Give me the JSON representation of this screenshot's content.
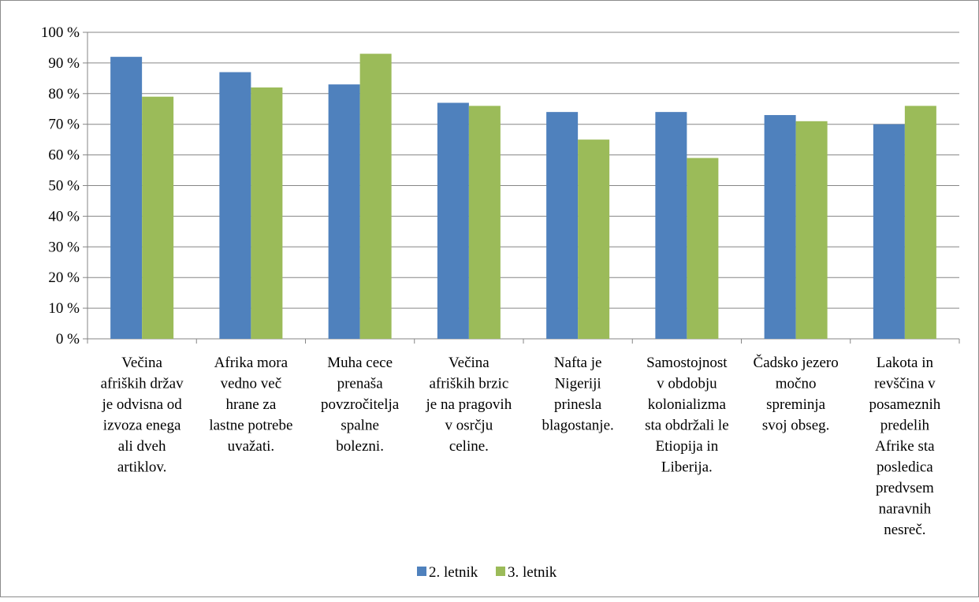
{
  "chart_data": {
    "type": "bar",
    "categories": [
      "Večina afriških držav je odvisna od izvoza enega ali dveh artiklov.",
      "Afrika mora vedno več hrane za lastne potrebe uvažati.",
      "Muha cece prenaša povzročitelja spalne bolezni.",
      "Večina afriških brzic je na pragovih v osrčju celine.",
      "Nafta je Nigeriji prinesla blagostanje.",
      "Samostojnost v obdobju kolonializma sta obdržali le Etiopija in Liberija.",
      "Čadsko jezero močno spreminja svoj obseg.",
      "Lakota in revščina v posameznih predelih Afrike sta posledica predvsem naravnih nesreč."
    ],
    "category_lines": [
      [
        "Večina",
        "afriških držav",
        "je odvisna od",
        "izvoza enega",
        "ali dveh",
        "artiklov."
      ],
      [
        "Afrika mora",
        "vedno več",
        "hrane za",
        "lastne potrebe",
        "uvažati."
      ],
      [
        "Muha cece",
        "prenaša",
        "povzročitelja",
        "spalne",
        "bolezni."
      ],
      [
        "Večina",
        "afriških brzic",
        "je na pragovih",
        "v osrčju",
        "celine."
      ],
      [
        "Nafta je",
        "Nigeriji",
        "prinesla",
        "blagostanje."
      ],
      [
        "Samostojnost",
        "v obdobju",
        "kolonializma",
        "sta obdržali le",
        "Etiopija in",
        "Liberija."
      ],
      [
        "Čadsko jezero",
        "močno",
        "spreminja",
        "svoj obseg."
      ],
      [
        "Lakota in",
        "revščina v",
        "posameznih",
        "predelih",
        "Afrike sta",
        "posledica",
        "predvsem",
        "naravnih",
        "nesreč."
      ]
    ],
    "series": [
      {
        "name": "2. letnik",
        "color": "#4f81bd",
        "values": [
          92,
          87,
          83,
          77,
          74,
          74,
          73,
          70
        ]
      },
      {
        "name": "3. letnik",
        "color": "#9bbb59",
        "values": [
          79,
          82,
          93,
          76,
          65,
          59,
          71,
          76
        ]
      }
    ],
    "ylim": [
      0,
      100
    ],
    "y_ticks": [
      0,
      10,
      20,
      30,
      40,
      50,
      60,
      70,
      80,
      90,
      100
    ],
    "y_tick_labels": [
      "0 %",
      "10 %",
      "20 %",
      "30 %",
      "40 %",
      "50 %",
      "60 %",
      "70 %",
      "80 %",
      "90 %",
      "100 %"
    ],
    "grid": true,
    "legend_position": "bottom",
    "gridline_color": "#868686",
    "title": "",
    "xlabel": "",
    "ylabel": ""
  }
}
